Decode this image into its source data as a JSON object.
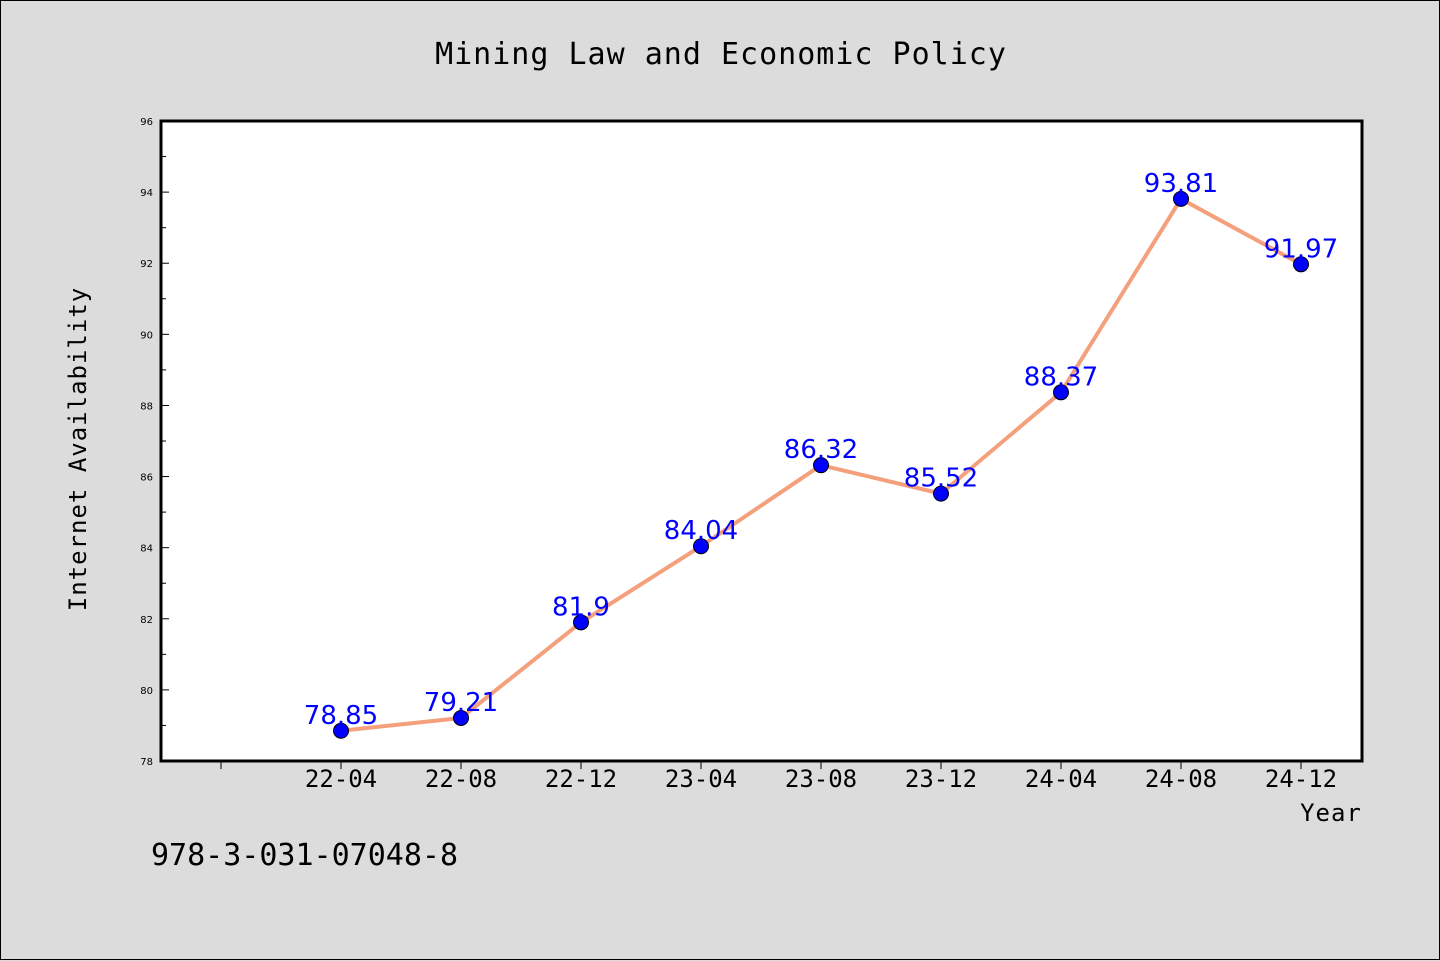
{
  "chart_data": {
    "type": "line",
    "title": "Mining Law and Economic Policy",
    "xlabel": "Year",
    "ylabel": "Internet Availability",
    "categories": [
      "22-04",
      "22-08",
      "22-12",
      "23-04",
      "23-08",
      "23-12",
      "24-04",
      "24-08",
      "24-12"
    ],
    "series": [
      {
        "values": [
          78.85,
          79.21,
          81.9,
          84.04,
          86.32,
          85.52,
          88.37,
          93.81,
          91.97
        ],
        "labels": [
          "78.85",
          "79.21",
          "81.9",
          "84.04",
          "86.32",
          "85.52",
          "88.37",
          "93.81",
          "91.97"
        ],
        "line_color": "#f4a07c",
        "marker_color": "#0000ff",
        "label_color": "#0000ff"
      }
    ],
    "ylim": [
      78,
      96
    ],
    "yticks": [
      78,
      80,
      82,
      84,
      86,
      88,
      90,
      92,
      94,
      96
    ],
    "grid": false,
    "legend": "none"
  },
  "footnote": "978-3-031-07048-8",
  "colors": {
    "background": "#dcdcdc",
    "plot_background": "#ffffff",
    "axis": "#000000"
  }
}
